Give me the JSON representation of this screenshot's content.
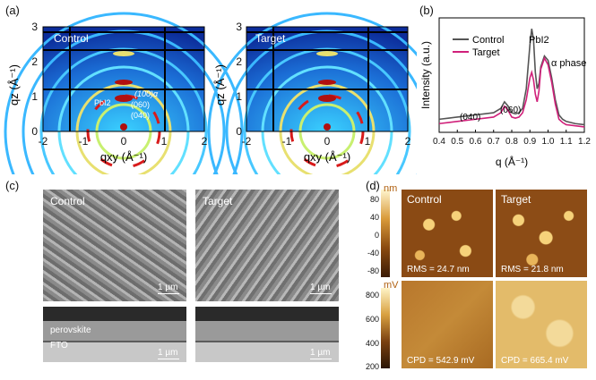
{
  "labels": {
    "a": "(a)",
    "b": "(b)",
    "c": "(c)",
    "d": "(d)"
  },
  "giwaxs": {
    "control_label": "Control",
    "target_label": "Target",
    "x_ticks": [
      "-2",
      "-1",
      "0",
      "1",
      "2"
    ],
    "y_ticks": [
      "0",
      "1",
      "2",
      "3"
    ],
    "x_title": "qxy (Å⁻¹)",
    "y_title": "qz (Å⁻¹)",
    "annot_pbi2": "PbI2",
    "annot_100": "(100)α",
    "annot_060": "(060)",
    "annot_040": "(040)"
  },
  "chart_data": {
    "type": "line",
    "xlabel": "q (Å⁻¹)",
    "ylabel": "Intensity (a.u.)",
    "xlim": [
      0.4,
      1.2
    ],
    "x_ticks": [
      "0.4",
      "0.5",
      "0.6",
      "0.7",
      "0.8",
      "0.9",
      "1.0",
      "1.1",
      "1.2"
    ],
    "legend_placement": "top-left",
    "series": [
      {
        "name": "Control",
        "color": "#555555",
        "x": [
          0.4,
          0.45,
          0.5,
          0.55,
          0.6,
          0.65,
          0.7,
          0.74,
          0.76,
          0.78,
          0.8,
          0.82,
          0.84,
          0.86,
          0.88,
          0.9,
          0.91,
          0.92,
          0.93,
          0.94,
          0.95,
          0.96,
          0.98,
          1.0,
          1.02,
          1.04,
          1.06,
          1.08,
          1.1,
          1.15,
          1.2
        ],
        "y": [
          0.12,
          0.13,
          0.14,
          0.15,
          0.16,
          0.17,
          0.18,
          0.22,
          0.28,
          0.24,
          0.18,
          0.17,
          0.18,
          0.22,
          0.4,
          0.8,
          0.95,
          0.85,
          0.55,
          0.4,
          0.45,
          0.6,
          0.7,
          0.66,
          0.5,
          0.3,
          0.16,
          0.12,
          0.1,
          0.08,
          0.07
        ]
      },
      {
        "name": "Target",
        "color": "#d0207a",
        "x": [
          0.4,
          0.45,
          0.5,
          0.55,
          0.6,
          0.65,
          0.7,
          0.74,
          0.76,
          0.78,
          0.8,
          0.82,
          0.84,
          0.86,
          0.88,
          0.9,
          0.91,
          0.92,
          0.93,
          0.94,
          0.95,
          0.96,
          0.98,
          1.0,
          1.02,
          1.04,
          1.06,
          1.08,
          1.1,
          1.15,
          1.2
        ],
        "y": [
          0.08,
          0.09,
          0.1,
          0.11,
          0.12,
          0.13,
          0.14,
          0.18,
          0.24,
          0.2,
          0.14,
          0.13,
          0.14,
          0.18,
          0.3,
          0.5,
          0.55,
          0.48,
          0.35,
          0.28,
          0.38,
          0.58,
          0.68,
          0.62,
          0.46,
          0.26,
          0.12,
          0.09,
          0.07,
          0.06,
          0.05
        ]
      }
    ],
    "annotations": [
      "PbI2",
      "α phase",
      "(060)",
      "(040)"
    ]
  },
  "sem": {
    "control_label": "Control",
    "target_label": "Target",
    "scale": "1 µm",
    "perovskite": "perovskite",
    "fto": "FTO"
  },
  "afm": {
    "control_label": "Control",
    "target_label": "Target",
    "nm_unit": "nm",
    "nm_ticks": [
      "80",
      "40",
      "0",
      "-40",
      "-80"
    ],
    "mv_unit": "mV",
    "mv_ticks": [
      "800",
      "600",
      "400",
      "200"
    ],
    "rms_control": "RMS = 24.7 nm",
    "rms_target": "RMS = 21.8 nm",
    "cpd_control": "CPD = 542.9 mV",
    "cpd_target": "CPD = 665.4 mV"
  }
}
